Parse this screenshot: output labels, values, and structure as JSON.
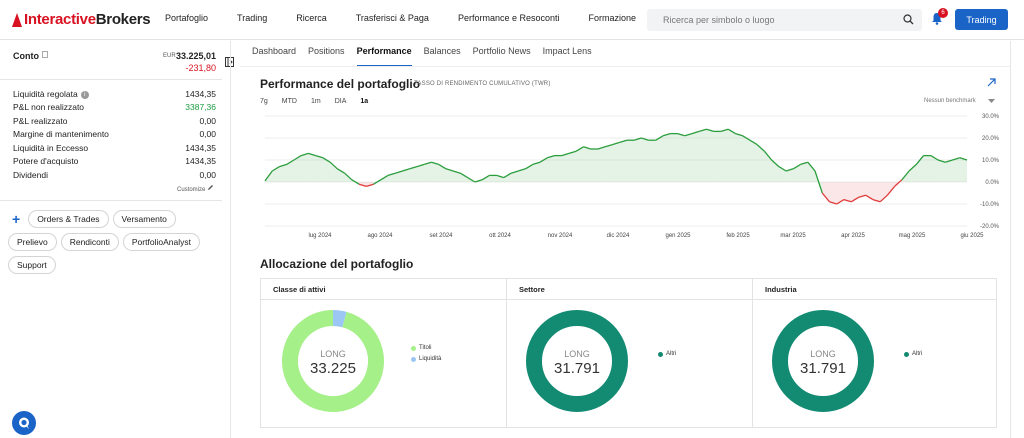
{
  "brand": {
    "part1": "Interactive",
    "part2": "Brokers"
  },
  "nav": [
    "Portafoglio",
    "Trading",
    "Ricerca",
    "Trasferisci & Paga",
    "Performance e Resoconti",
    "Formazione"
  ],
  "search": {
    "placeholder": "Ricerca per simbolo o luogo"
  },
  "notifications": {
    "count": "6"
  },
  "trade_button": "Trading",
  "account": {
    "title": "Conto",
    "currency": "EUR",
    "value": "33.225,01",
    "change": "-231,80",
    "metrics": [
      {
        "label": "Liquidità regolata",
        "value": "1434,35",
        "info": true
      },
      {
        "label": "P&L non realizzato",
        "value": "3387,36",
        "positive": true
      },
      {
        "label": "P&L realizzato",
        "value": "0,00"
      },
      {
        "label": "Margine di mantenimento",
        "value": "0,00"
      },
      {
        "label": "Liquidità in Eccesso",
        "value": "1434,35"
      },
      {
        "label": "Potere d'acquisto",
        "value": "1434,35"
      },
      {
        "label": "Dividendi",
        "value": "0,00"
      }
    ],
    "customize": "Customize"
  },
  "actions": [
    "Orders & Trades",
    "Versamento",
    "Prelievo",
    "Rendiconti",
    "PortfolioAnalyst",
    "Support"
  ],
  "tabs": [
    "Dashboard",
    "Positions",
    "Performance",
    "Balances",
    "Portfolio News",
    "Impact Lens"
  ],
  "performance": {
    "title": "Performance del portafoglio",
    "subtitle": "TASSO DI RENDIMENTO CUMULATIVO (TWR)",
    "ranges": [
      "7g",
      "MTD",
      "1m",
      "DIA",
      "1a"
    ],
    "active_range": "1a",
    "benchmark": "Nessun benchmark"
  },
  "chart_data": {
    "type": "area",
    "ylim": [
      -20,
      30
    ],
    "yticks": [
      "30.0%",
      "20.0%",
      "10.0%",
      "0.0%",
      "-10.0%",
      "-20.0%"
    ],
    "xticks": [
      "lug 2024",
      "ago 2024",
      "set 2024",
      "ott 2024",
      "nov 2024",
      "dic 2024",
      "gen 2025",
      "feb 2025",
      "mar 2025",
      "apr 2025",
      "mag 2025",
      "giu 2025"
    ],
    "positive_color": "#2a9d3c",
    "negative_color": "#e03a3a",
    "values": [
      0.5,
      5,
      7,
      8,
      10,
      12,
      13,
      12,
      11,
      9,
      6,
      4,
      1,
      -1,
      -2,
      -1,
      1,
      3,
      4,
      5,
      6,
      7,
      8,
      9,
      8,
      6,
      5,
      4,
      2,
      0,
      1,
      3,
      3,
      2,
      4,
      5,
      6,
      8,
      9,
      11,
      12,
      12,
      13,
      14,
      16,
      15,
      15,
      16,
      17,
      18,
      19,
      19,
      20,
      19,
      19,
      21,
      22,
      22,
      21,
      22,
      23,
      24,
      23,
      23,
      24,
      22,
      21,
      19,
      17,
      14,
      10,
      7,
      5,
      6,
      8,
      9,
      5,
      -5,
      -9,
      -10,
      -8,
      -9,
      -7,
      -6,
      -8,
      -9,
      -6,
      -2,
      1,
      5,
      8,
      12,
      12,
      10,
      9,
      10,
      11,
      10
    ]
  },
  "allocation": {
    "title": "Allocazione del portafoglio",
    "columns": [
      {
        "title": "Classe di attivi",
        "center_label": "LONG",
        "center_value": "33.225",
        "segments": [
          {
            "name": "Titoli",
            "value": 95.7,
            "color": "#a6f08a"
          },
          {
            "name": "Liquidità",
            "value": 4.3,
            "color": "#9cc7f4"
          }
        ]
      },
      {
        "title": "Settore",
        "center_label": "LONG",
        "center_value": "31.791",
        "segments": [
          {
            "name": "Altri",
            "value": 100,
            "color": "#138a72"
          }
        ]
      },
      {
        "title": "Industria",
        "center_label": "LONG",
        "center_value": "31.791",
        "segments": [
          {
            "name": "Altri",
            "value": 100,
            "color": "#138a72"
          }
        ]
      }
    ]
  }
}
